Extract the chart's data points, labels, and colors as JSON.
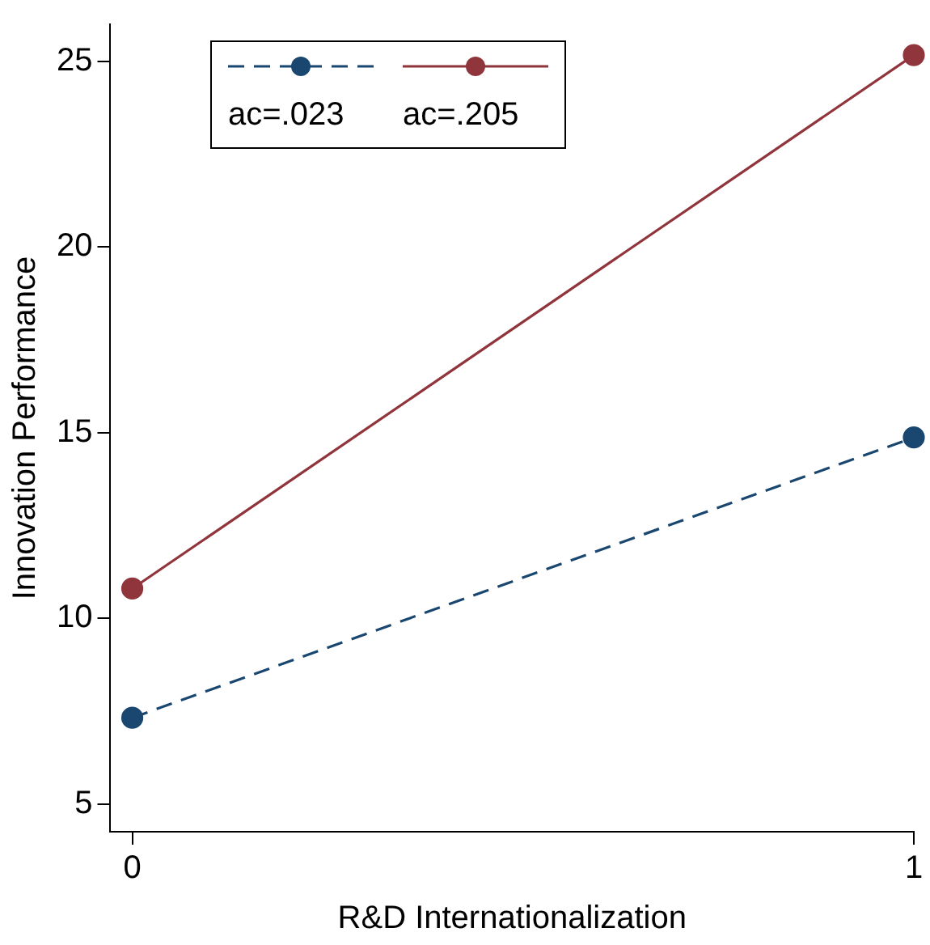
{
  "chart_data": {
    "type": "line",
    "xlabel": "R&D Internationalization",
    "ylabel": "Innovation Performance",
    "x": [
      0,
      1
    ],
    "xlim": [
      -0.028,
      1
    ],
    "xticks": [
      0,
      1
    ],
    "ylim": [
      4.25,
      26
    ],
    "yticks": [
      5,
      10,
      15,
      20,
      25
    ],
    "grid": false,
    "legend": "top left",
    "marker": "circle",
    "series": [
      {
        "name": "ac=.023",
        "color": "#1a476f",
        "values": [
          7.32,
          14.87
        ],
        "line_style": "dashed"
      },
      {
        "name": "ac=.205",
        "color": "#90353b",
        "values": [
          10.8,
          25.17
        ],
        "line_style": "solid"
      }
    ]
  }
}
